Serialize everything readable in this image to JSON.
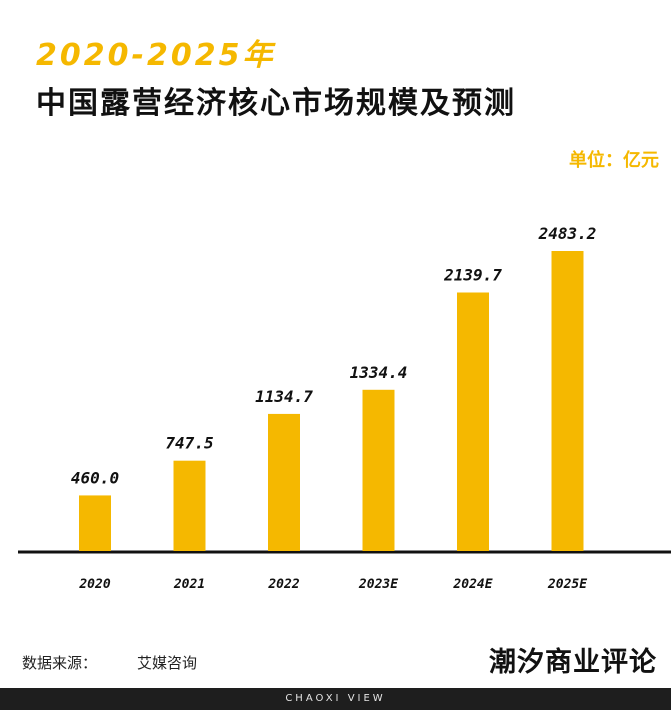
{
  "header": {
    "year_title": "2020-2025年",
    "main_title": "中国露营经济核心市场规模及预测",
    "unit": "单位：亿元"
  },
  "footer": {
    "source_label": "数据来源：",
    "source_value": "艾媒咨询",
    "brand": "潮汐商业评论",
    "bottom_text": "CHAOXI VIEW"
  },
  "colors": {
    "bar": "#f5b800",
    "accent": "#f5b800",
    "text": "#111111",
    "baseline": "#111111"
  },
  "chart_data": {
    "type": "bar",
    "title": "中国露营经济核心市场规模及预测",
    "ylabel": "单位：亿元",
    "categories": [
      "2020",
      "2021",
      "2022",
      "2023E",
      "2024E",
      "2025E"
    ],
    "values": [
      460.0,
      747.5,
      1134.7,
      1334.4,
      2139.7,
      2483.2
    ],
    "value_labels": [
      "460.0",
      "747.5",
      "1134.7",
      "1334.4",
      "2139.7",
      "2483.2"
    ],
    "ylim": [
      0,
      2600
    ],
    "grid": false,
    "legend": "none"
  }
}
